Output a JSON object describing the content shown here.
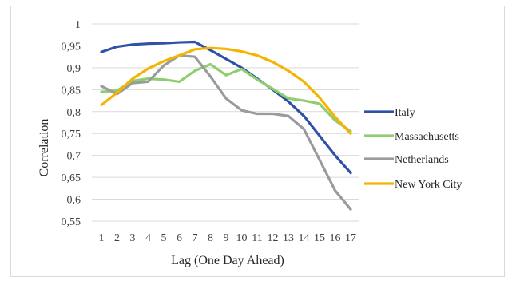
{
  "chart_data": {
    "type": "line",
    "title": "",
    "xlabel": "Lag (One Day Ahead)",
    "ylabel": "Correlation",
    "x": [
      1,
      2,
      3,
      4,
      5,
      6,
      7,
      8,
      9,
      10,
      11,
      12,
      13,
      14,
      15,
      16,
      17
    ],
    "x_tick_labels": [
      "1",
      "2",
      "3",
      "4",
      "5",
      "6",
      "7",
      "8",
      "9",
      "10",
      "11",
      "12",
      "13",
      "14",
      "15",
      "16",
      "17"
    ],
    "ylim": [
      0.55,
      1.0
    ],
    "y_tick_labels": [
      "1",
      "0,95",
      "0,9",
      "0,85",
      "0,8",
      "0,75",
      "0,7",
      "0,65",
      "0,6",
      "0,55"
    ],
    "y_ticks": [
      1.0,
      0.95,
      0.9,
      0.85,
      0.8,
      0.75,
      0.7,
      0.65,
      0.6,
      0.55
    ],
    "grid": true,
    "legend_position": "right",
    "series": [
      {
        "name": "Italy",
        "color": "#2f52a8",
        "values": [
          0.936,
          0.948,
          0.953,
          0.955,
          0.956,
          0.958,
          0.959,
          0.94,
          0.92,
          0.9,
          0.875,
          0.85,
          0.823,
          0.79,
          0.745,
          0.7,
          0.66
        ]
      },
      {
        "name": "Massachusetts",
        "color": "#8fce6e",
        "values": [
          0.845,
          0.848,
          0.87,
          0.875,
          0.873,
          0.868,
          0.893,
          0.908,
          0.883,
          0.897,
          0.873,
          0.852,
          0.83,
          0.825,
          0.818,
          0.78,
          0.755
        ]
      },
      {
        "name": "Netherlands",
        "color": "#9b9b9b",
        "values": [
          0.858,
          0.84,
          0.865,
          0.868,
          0.905,
          0.928,
          0.925,
          0.88,
          0.83,
          0.803,
          0.795,
          0.795,
          0.79,
          0.76,
          0.69,
          0.62,
          0.577
        ]
      },
      {
        "name": "New York City",
        "color": "#f5b400",
        "values": [
          0.815,
          0.843,
          0.875,
          0.898,
          0.915,
          0.928,
          0.942,
          0.945,
          0.943,
          0.937,
          0.928,
          0.913,
          0.893,
          0.868,
          0.832,
          0.788,
          0.75
        ]
      }
    ]
  }
}
